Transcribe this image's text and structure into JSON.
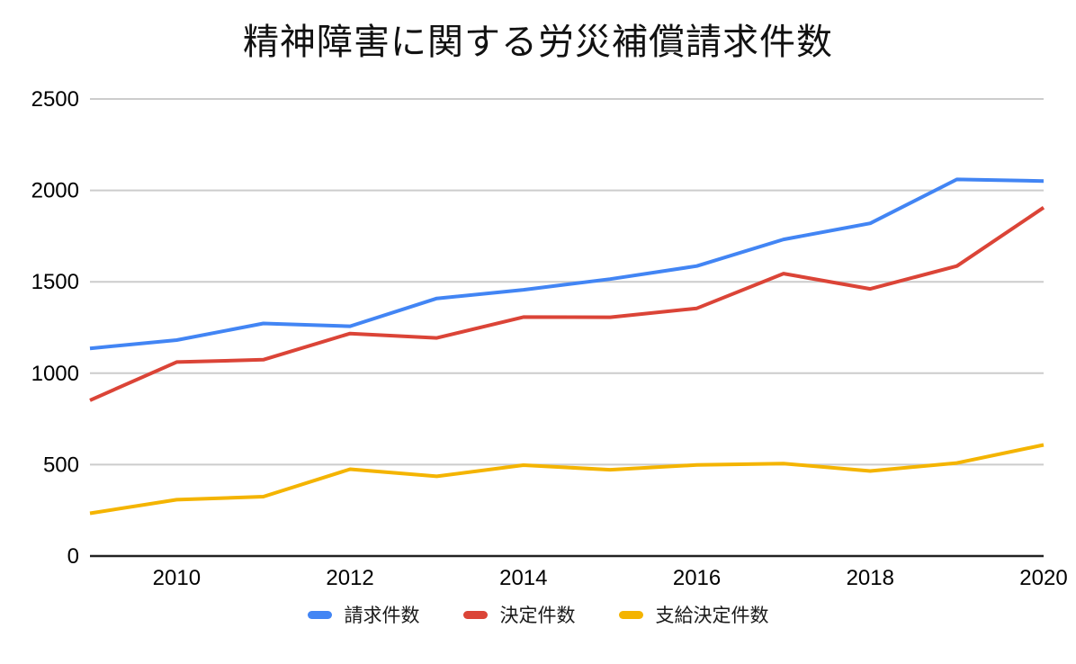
{
  "title": "精神障害に関する労災補償請求件数",
  "chart_data": {
    "type": "line",
    "title": "精神障害に関する労災補償請求件数",
    "xlabel": "",
    "ylabel": "",
    "x": [
      2009,
      2010,
      2011,
      2012,
      2013,
      2014,
      2015,
      2016,
      2017,
      2018,
      2019,
      2020
    ],
    "series": [
      {
        "id": "claims",
        "name": "請求件数",
        "color": "#4285F4",
        "values": [
          1136,
          1181,
          1272,
          1257,
          1409,
          1456,
          1515,
          1586,
          1732,
          1820,
          2060,
          2051
        ]
      },
      {
        "id": "decisions",
        "name": "決定件数",
        "color": "#DB4437",
        "values": [
          852,
          1061,
          1074,
          1217,
          1193,
          1307,
          1306,
          1355,
          1545,
          1461,
          1586,
          1906
        ]
      },
      {
        "id": "grants",
        "name": "支給決定件数",
        "color": "#F4B400",
        "values": [
          234,
          308,
          325,
          475,
          436,
          497,
          472,
          498,
          506,
          465,
          509,
          608
        ]
      }
    ],
    "ylim": [
      0,
      2500
    ],
    "yticks": [
      0,
      500,
      1000,
      1500,
      2000,
      2500
    ],
    "xticks": [
      2010,
      2012,
      2014,
      2016,
      2018,
      2020
    ],
    "grid": true,
    "legend_position": "bottom"
  },
  "colors": {
    "background": "#ffffff",
    "grid": "#cccccc",
    "axis": "#212121",
    "tick_text": "#000000",
    "title_text": "#111111",
    "legend_text": "#1a1a1a"
  }
}
